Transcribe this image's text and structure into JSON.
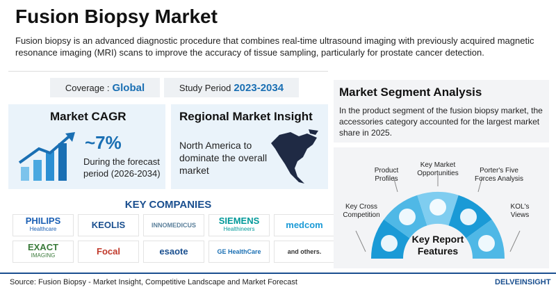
{
  "header": {
    "title": "Fusion Biopsy Market",
    "description": "Fusion biopsy is an advanced diagnostic procedure that combines real-time ultrasound imaging with previously acquired magnetic resonance imaging (MRI) scans to improve the accuracy of tissue sampling, particularly for prostate cancer detection."
  },
  "coverage": {
    "label": "Coverage :",
    "value": "Global"
  },
  "study_period": {
    "label": "Study Period",
    "value": "2023-2034"
  },
  "cagr": {
    "title": "Market CAGR",
    "value": "~7%",
    "note": "During the forecast period (2026-2034)"
  },
  "regional": {
    "title": "Regional Market Insight",
    "text": "North America to dominate the overall market"
  },
  "key_companies": {
    "title": "KEY COMPANIES",
    "companies": [
      {
        "name": "PHILIPS",
        "sub": "Healthcare"
      },
      {
        "name": "KEOLIS"
      },
      {
        "name": "INNOMEDICUS"
      },
      {
        "name": "SIEMENS",
        "sub": "Healthineers"
      },
      {
        "name": "medcom"
      },
      {
        "name": "EXACT",
        "sub": "IMAGING"
      },
      {
        "name": "Focal"
      },
      {
        "name": "esaote"
      },
      {
        "name": "GE HealthCare"
      },
      {
        "name": "and others."
      }
    ]
  },
  "segment_analysis": {
    "title": "Market Segment Analysis",
    "text": "In the product segment of the fusion biopsy market, the accessories category accounted for the largest market share in 2025."
  },
  "key_report_features": {
    "title": "Key Report Features",
    "items": [
      "Key Cross Competition",
      "Product Profiles",
      "Key Market Opportunities",
      "Porter's Five Forces Analysis",
      "KOL's Views"
    ]
  },
  "footer": {
    "source": "Source: Fusion Biopsy - Market Insight, Competitive Landscape and Market Forecast",
    "brand": "DELVEINSIGHT"
  }
}
